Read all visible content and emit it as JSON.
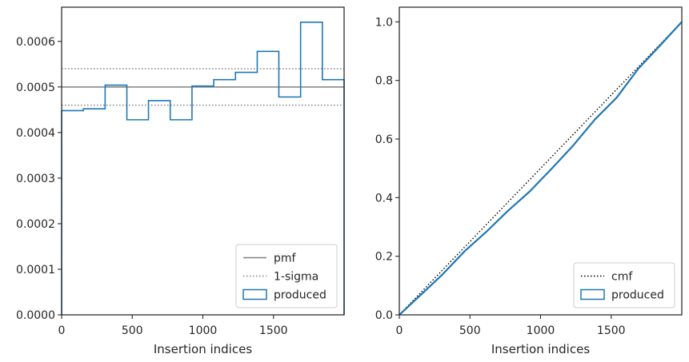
{
  "chart_data": [
    {
      "type": "histogram",
      "xlabel": "Insertion indices",
      "ylabel": "",
      "xlim": [
        0,
        2000
      ],
      "ylim": [
        0,
        0.000675
      ],
      "xticks": [
        0,
        500,
        1000,
        1500
      ],
      "xtick_labels": [
        "0",
        "500",
        "1000",
        "1500"
      ],
      "yticks": [
        0,
        0.0001,
        0.0002,
        0.0003,
        0.0004,
        0.0005,
        0.0006
      ],
      "ytick_labels": [
        "0.0000",
        "0.0001",
        "0.0002",
        "0.0003",
        "0.0004",
        "0.0005",
        "0.0006"
      ],
      "grid": false,
      "legend_position": "lower-right",
      "pmf": 0.0005,
      "sigma_band": [
        0.00046,
        0.00054
      ],
      "bin_edges": [
        0,
        154,
        308,
        462,
        615,
        769,
        923,
        1077,
        1231,
        1385,
        1538,
        1692,
        1846,
        2000
      ],
      "bin_values": [
        0.000448,
        0.000452,
        0.000504,
        0.000428,
        0.00047,
        0.000428,
        0.000502,
        0.000516,
        0.000532,
        0.000578,
        0.000478,
        0.000642,
        0.000516
      ],
      "legend": [
        {
          "label": "pmf",
          "style": "solid",
          "color": "#808080"
        },
        {
          "label": "1-sigma",
          "style": "dotted",
          "color": "#808080"
        },
        {
          "label": "produced",
          "style": "patch",
          "color": "#1f77b4"
        }
      ]
    },
    {
      "type": "line",
      "xlabel": "Insertion indices",
      "ylabel": "",
      "xlim": [
        0,
        2000
      ],
      "ylim": [
        0,
        1.05
      ],
      "xticks": [
        0,
        500,
        1000,
        1500
      ],
      "xtick_labels": [
        "0",
        "500",
        "1000",
        "1500"
      ],
      "yticks": [
        0,
        0.2,
        0.4,
        0.6,
        0.8,
        1.0
      ],
      "ytick_labels": [
        "0.0",
        "0.2",
        "0.4",
        "0.6",
        "0.8",
        "1.0"
      ],
      "grid": false,
      "legend_position": "lower-right",
      "series": [
        {
          "name": "cmf",
          "style": "dotted",
          "color": "#000000",
          "x": [
            0,
            2000
          ],
          "y": [
            0,
            1.0
          ]
        },
        {
          "name": "produced",
          "style": "solid",
          "color": "#1f77b4",
          "x": [
            0,
            154,
            308,
            462,
            615,
            769,
            923,
            1077,
            1231,
            1385,
            1538,
            1692,
            1846,
            2000
          ],
          "y": [
            0,
            0.069,
            0.139,
            0.217,
            0.283,
            0.355,
            0.421,
            0.498,
            0.578,
            0.667,
            0.741,
            0.84,
            0.919,
            1.0
          ]
        }
      ]
    }
  ],
  "colors": {
    "produced": "#1f77b4",
    "pmf": "#808080",
    "cmf": "#000000",
    "axes": "#262626"
  }
}
